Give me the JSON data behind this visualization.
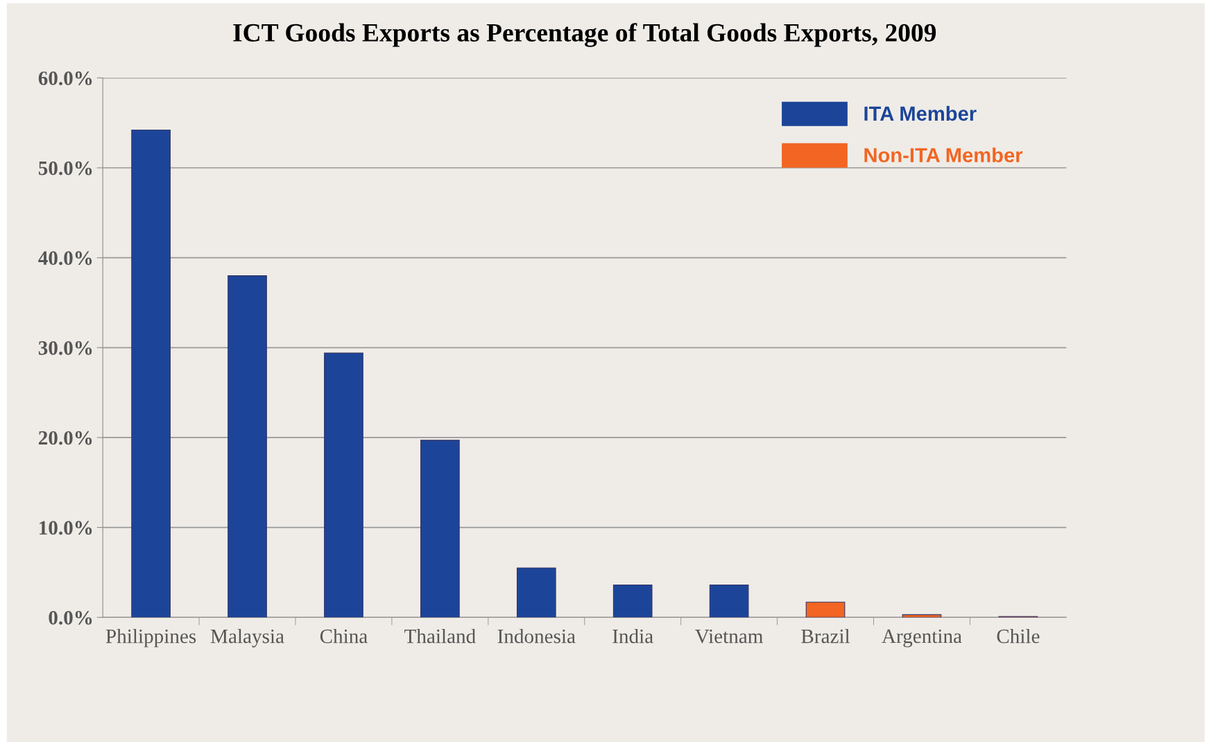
{
  "chart_data": {
    "type": "bar",
    "title": "ICT Goods Exports as Percentage of Total Goods Exports, 2009",
    "categories": [
      "Philippines",
      "Malaysia",
      "China",
      "Thailand",
      "Indonesia",
      "India",
      "Vietnam",
      "Brazil",
      "Argentina",
      "Chile"
    ],
    "series": [
      {
        "name": "ITA Member",
        "color": "#1c4599",
        "values": [
          54.2,
          38.0,
          29.4,
          19.7,
          5.5,
          3.6,
          3.6,
          null,
          null,
          null
        ]
      },
      {
        "name": "Non-ITA Member",
        "color": "#f26522",
        "values": [
          null,
          null,
          null,
          null,
          null,
          null,
          null,
          1.7,
          0.3,
          0.1
        ]
      }
    ],
    "ylim": [
      0,
      60
    ],
    "yticks": [
      {
        "value": 0,
        "label": "0.0%"
      },
      {
        "value": 10,
        "label": "10.0%"
      },
      {
        "value": 20,
        "label": "20.0%"
      },
      {
        "value": 30,
        "label": "30.0%"
      },
      {
        "value": 40,
        "label": "40.0%"
      },
      {
        "value": 50,
        "label": "50.0%"
      },
      {
        "value": 60,
        "label": "60.0%"
      }
    ],
    "grid": "y",
    "legend": "top right"
  }
}
